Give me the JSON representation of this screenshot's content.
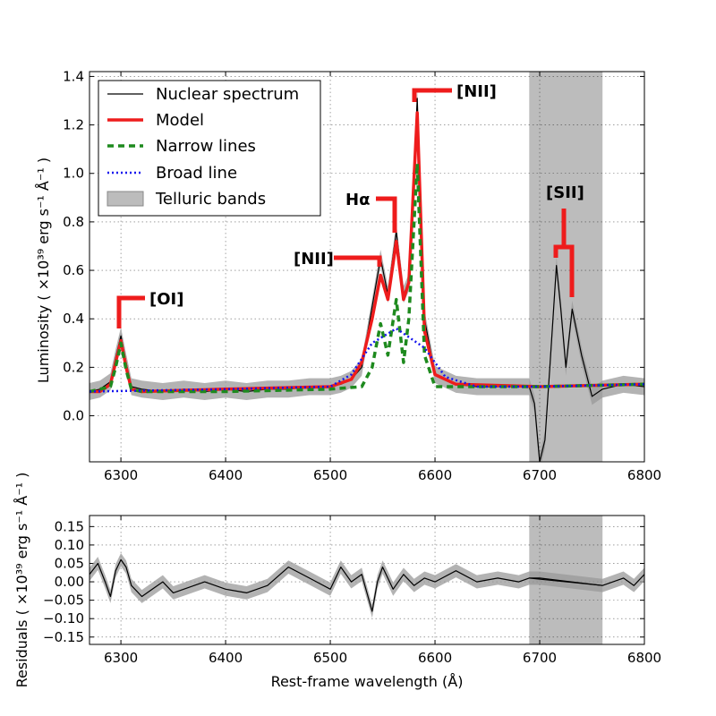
{
  "chart_data": [
    {
      "type": "line",
      "panel": "main",
      "ylabel": "Luminosity ( ×10³⁹ erg s⁻¹  Å⁻¹ )",
      "xlim": [
        6270,
        6800
      ],
      "ylim": [
        -0.19,
        1.42
      ],
      "xticks": [
        "6300",
        "6400",
        "6500",
        "6600",
        "6700",
        "6800"
      ],
      "yticks": [
        "0.0",
        "0.2",
        "0.4",
        "0.6",
        "0.8",
        "1.0",
        "1.2",
        "1.4"
      ],
      "grid": true,
      "telluric_band": [
        6690,
        6760
      ],
      "legend": {
        "placement": "top-left",
        "entries": [
          "Nuclear spectrum",
          "Model",
          "Narrow lines",
          "Broad line",
          "Telluric bands"
        ]
      },
      "annotations": [
        {
          "label": "[OI]",
          "wavelength": 6300
        },
        {
          "label": "[NII]",
          "wavelength": 6548
        },
        {
          "label": "Hα",
          "wavelength": 6563
        },
        {
          "label": "[NII]",
          "wavelength": 6583
        },
        {
          "label": "[SII]",
          "wavelength": 6723
        }
      ],
      "series": [
        {
          "name": "Nuclear spectrum",
          "color": "#000000",
          "x": [
            6270,
            6280,
            6290,
            6295,
            6300,
            6305,
            6310,
            6320,
            6340,
            6360,
            6380,
            6400,
            6420,
            6440,
            6460,
            6480,
            6500,
            6510,
            6520,
            6530,
            6540,
            6548,
            6555,
            6563,
            6570,
            6575,
            6583,
            6590,
            6600,
            6620,
            6640,
            6660,
            6680,
            6690,
            6695,
            6700,
            6705,
            6710,
            6716,
            6720,
            6725,
            6731,
            6740,
            6750,
            6760,
            6780,
            6800
          ],
          "y": [
            0.1,
            0.11,
            0.14,
            0.24,
            0.33,
            0.22,
            0.12,
            0.11,
            0.1,
            0.11,
            0.1,
            0.11,
            0.1,
            0.11,
            0.11,
            0.12,
            0.12,
            0.13,
            0.15,
            0.2,
            0.45,
            0.65,
            0.5,
            0.76,
            0.5,
            0.55,
            1.31,
            0.4,
            0.17,
            0.13,
            0.12,
            0.12,
            0.12,
            0.12,
            0.05,
            -0.19,
            -0.1,
            0.22,
            0.62,
            0.45,
            0.2,
            0.44,
            0.25,
            0.08,
            0.11,
            0.13,
            0.12
          ]
        },
        {
          "name": "Model",
          "color": "#ee1c1c",
          "x": [
            6270,
            6280,
            6290,
            6295,
            6300,
            6305,
            6310,
            6320,
            6400,
            6500,
            6520,
            6530,
            6540,
            6548,
            6555,
            6563,
            6570,
            6575,
            6583,
            6590,
            6600,
            6620,
            6700,
            6800
          ],
          "y": [
            0.1,
            0.1,
            0.13,
            0.22,
            0.31,
            0.2,
            0.11,
            0.1,
            0.11,
            0.12,
            0.15,
            0.22,
            0.4,
            0.58,
            0.48,
            0.72,
            0.48,
            0.55,
            1.25,
            0.35,
            0.17,
            0.13,
            0.12,
            0.13
          ]
        },
        {
          "name": "Narrow lines",
          "color": "#1e8a1e",
          "x": [
            6270,
            6290,
            6295,
            6300,
            6305,
            6310,
            6320,
            6400,
            6500,
            6530,
            6540,
            6548,
            6555,
            6563,
            6570,
            6575,
            6583,
            6590,
            6600,
            6700,
            6800
          ],
          "y": [
            0.1,
            0.12,
            0.2,
            0.3,
            0.19,
            0.11,
            0.1,
            0.1,
            0.11,
            0.12,
            0.2,
            0.38,
            0.25,
            0.48,
            0.22,
            0.4,
            1.04,
            0.25,
            0.12,
            0.12,
            0.13
          ]
        },
        {
          "name": "Broad line",
          "color": "#1515ee",
          "x": [
            6270,
            6400,
            6500,
            6520,
            6540,
            6563,
            6590,
            6610,
            6640,
            6700,
            6800
          ],
          "y": [
            0.1,
            0.11,
            0.12,
            0.17,
            0.3,
            0.36,
            0.28,
            0.16,
            0.12,
            0.12,
            0.13
          ]
        }
      ]
    },
    {
      "type": "line",
      "panel": "residuals",
      "xlabel": "Rest-frame wavelength (Å)",
      "ylabel": "Residuals ( ×10³⁹ erg s⁻¹  Å⁻¹ )",
      "xlim": [
        6270,
        6800
      ],
      "ylim": [
        -0.17,
        0.18
      ],
      "xticks": [
        "6300",
        "6400",
        "6500",
        "6600",
        "6700",
        "6800"
      ],
      "yticks": [
        "0.15",
        "0.10",
        "0.05",
        "0.00",
        "−0.05",
        "−0.10",
        "−0.15"
      ],
      "grid": true,
      "telluric_band": [
        6690,
        6760
      ],
      "series": [
        {
          "name": "Residuals",
          "color": "#000000",
          "x": [
            6270,
            6278,
            6285,
            6290,
            6295,
            6300,
            6305,
            6310,
            6320,
            6330,
            6340,
            6350,
            6360,
            6380,
            6400,
            6420,
            6440,
            6460,
            6480,
            6500,
            6510,
            6520,
            6530,
            6540,
            6545,
            6550,
            6560,
            6570,
            6580,
            6590,
            6600,
            6620,
            6640,
            6660,
            6680,
            6690,
            6700,
            6760,
            6770,
            6780,
            6790,
            6800
          ],
          "y": [
            0.02,
            0.05,
            0.0,
            -0.04,
            0.03,
            0.06,
            0.04,
            -0.01,
            -0.04,
            -0.02,
            0.0,
            -0.03,
            -0.02,
            0.0,
            -0.02,
            -0.03,
            -0.01,
            0.04,
            0.01,
            -0.02,
            0.04,
            0.0,
            0.02,
            -0.08,
            0.0,
            0.04,
            -0.02,
            0.02,
            -0.01,
            0.01,
            0.0,
            0.03,
            0.0,
            0.01,
            0.0,
            0.01,
            0.01,
            -0.01,
            0.0,
            0.01,
            -0.01,
            0.02
          ]
        }
      ]
    }
  ]
}
